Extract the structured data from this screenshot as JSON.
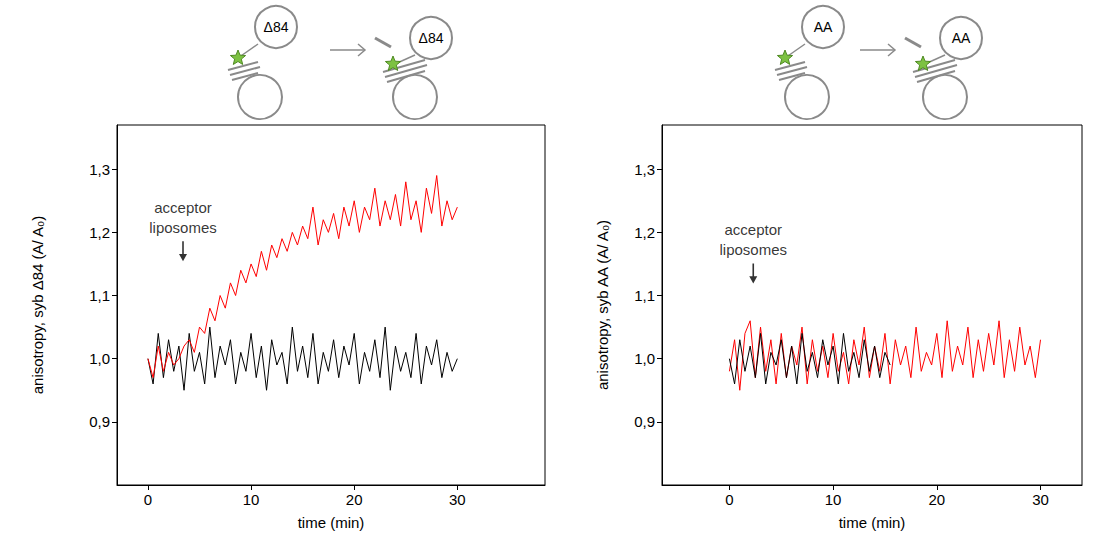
{
  "chart_data": [
    {
      "type": "line",
      "schematic_label": "Δ84",
      "x_label": "time (min)",
      "y_label": "anisotropy, syb Δ84 (A/ A₀)",
      "annotation": {
        "text": "acceptor liposomes",
        "x": 3.4,
        "y": 1.17
      },
      "xlim": [
        -3,
        38.5
      ],
      "ylim": [
        0.8,
        1.37
      ],
      "xticks": [
        0,
        10,
        20,
        30
      ],
      "yticks": [
        {
          "value": 0.9,
          "label": "0,9"
        },
        {
          "value": 1.0,
          "label": "1,0"
        },
        {
          "value": 1.1,
          "label": "1,1"
        },
        {
          "value": 1.2,
          "label": "1,2"
        },
        {
          "value": 1.3,
          "label": "1,3"
        }
      ],
      "x": [
        0,
        0.5,
        1,
        1.5,
        2,
        2.5,
        3,
        3.5,
        4,
        4.5,
        5,
        5.5,
        6,
        6.5,
        7,
        7.5,
        8,
        8.5,
        9,
        9.5,
        10,
        10.5,
        11,
        11.5,
        12,
        12.5,
        13,
        13.5,
        14,
        14.5,
        15,
        15.5,
        16,
        16.5,
        17,
        17.5,
        18,
        18.5,
        19,
        19.5,
        20,
        20.5,
        21,
        21.5,
        22,
        22.5,
        23,
        23.5,
        24,
        24.5,
        25,
        25.5,
        26,
        26.5,
        27,
        27.5,
        28,
        28.5,
        29,
        29.5,
        30
      ],
      "series": [
        {
          "color": "#000000",
          "values": [
            1.0,
            0.96,
            1.04,
            0.97,
            1.03,
            0.98,
            1.02,
            0.95,
            1.04,
            0.98,
            1.01,
            0.96,
            1.05,
            0.97,
            1.02,
            0.99,
            1.03,
            0.96,
            1.01,
            0.98,
            1.04,
            0.97,
            1.02,
            0.95,
            1.03,
            0.99,
            1.01,
            0.96,
            1.05,
            0.98,
            1.02,
            0.97,
            1.04,
            0.96,
            1.01,
            0.98,
            1.03,
            0.97,
            1.02,
            0.99,
            1.04,
            0.96,
            1.01,
            0.98,
            1.03,
            0.97,
            1.05,
            0.95,
            1.02,
            0.98,
            1.01,
            0.97,
            1.04,
            0.96,
            1.02,
            0.99,
            1.03,
            0.97,
            1.01,
            0.98,
            1.0
          ]
        },
        {
          "color": "#ff0000",
          "values": [
            1.0,
            0.97,
            1.02,
            0.98,
            1.01,
            0.99,
            1.0,
            1.02,
            1.03,
            1.01,
            1.05,
            1.04,
            1.08,
            1.06,
            1.1,
            1.08,
            1.12,
            1.1,
            1.14,
            1.12,
            1.15,
            1.13,
            1.17,
            1.14,
            1.18,
            1.16,
            1.19,
            1.17,
            1.2,
            1.18,
            1.21,
            1.19,
            1.24,
            1.18,
            1.22,
            1.2,
            1.23,
            1.19,
            1.24,
            1.21,
            1.25,
            1.2,
            1.24,
            1.22,
            1.27,
            1.21,
            1.25,
            1.22,
            1.26,
            1.21,
            1.28,
            1.22,
            1.25,
            1.2,
            1.27,
            1.23,
            1.29,
            1.21,
            1.25,
            1.22,
            1.24
          ]
        }
      ]
    },
    {
      "type": "line",
      "schematic_label": "AA",
      "x_label": "time (min)",
      "y_label": "anisotropy, syb AA (A/ A₀)",
      "annotation": {
        "text": "acceptor liposomes",
        "x": 2.3,
        "y": 1.135
      },
      "xlim": [
        -6.5,
        34
      ],
      "ylim": [
        0.8,
        1.37
      ],
      "xticks": [
        0,
        10,
        20,
        30
      ],
      "yticks": [
        {
          "value": 0.9,
          "label": "0,9"
        },
        {
          "value": 1.0,
          "label": "1,0"
        },
        {
          "value": 1.1,
          "label": "1,1"
        },
        {
          "value": 1.2,
          "label": "1,2"
        },
        {
          "value": 1.3,
          "label": "1,3"
        }
      ],
      "x": [
        0,
        0.5,
        1,
        1.5,
        2,
        2.5,
        3,
        3.5,
        4,
        4.5,
        5,
        5.5,
        6,
        6.5,
        7,
        7.5,
        8,
        8.5,
        9,
        9.5,
        10,
        10.5,
        11,
        11.5,
        12,
        12.5,
        13,
        13.5,
        14,
        14.5,
        15,
        15.5,
        16,
        16.5,
        17,
        17.5,
        18,
        18.5,
        19,
        19.5,
        20,
        20.5,
        21,
        21.5,
        22,
        22.5,
        23,
        23.5,
        24,
        24.5,
        25,
        25.5,
        26,
        26.5,
        27,
        27.5,
        28,
        28.5,
        29,
        29.5,
        30
      ],
      "series": [
        {
          "color": "#ff0000",
          "values": [
            0.98,
            1.03,
            0.95,
            1.04,
            1.06,
            0.97,
            1.05,
            0.98,
            1.03,
            0.96,
            1.04,
            0.97,
            1.02,
            0.99,
            1.05,
            0.96,
            1.03,
            0.98,
            1.02,
            0.97,
            1.04,
            0.98,
            1.01,
            0.96,
            1.03,
            0.99,
            1.05,
            0.97,
            1.02,
            0.98,
            1.04,
            0.96,
            1.03,
            0.99,
            1.02,
            0.97,
            1.05,
            0.98,
            1.01,
            0.99,
            1.04,
            0.97,
            1.06,
            0.98,
            1.02,
            0.99,
            1.05,
            0.97,
            1.03,
            0.98,
            1.04,
            0.99,
            1.06,
            0.97,
            1.03,
            0.98,
            1.05,
            0.99,
            1.02,
            0.97,
            1.03
          ]
        },
        {
          "color": "#000000",
          "values": [
            1.0,
            0.96,
            1.03,
            0.98,
            1.02,
            0.97,
            1.04,
            0.96,
            1.01,
            0.99,
            1.03,
            0.97,
            1.02,
            0.96,
            1.04,
            0.98,
            1.01,
            0.97,
            1.03,
            0.99,
            1.02,
            0.96,
            1.04,
            0.98,
            1.01,
            0.97,
            1.03,
            0.98,
            1.02,
            0.97,
            1.01,
            0.99,
            null,
            null,
            null,
            null,
            null,
            null,
            null,
            null,
            null,
            null,
            null,
            null,
            null,
            null,
            null,
            null,
            null,
            null,
            null,
            null,
            null,
            null,
            null,
            null,
            null,
            null,
            null,
            null,
            null
          ]
        }
      ]
    }
  ]
}
